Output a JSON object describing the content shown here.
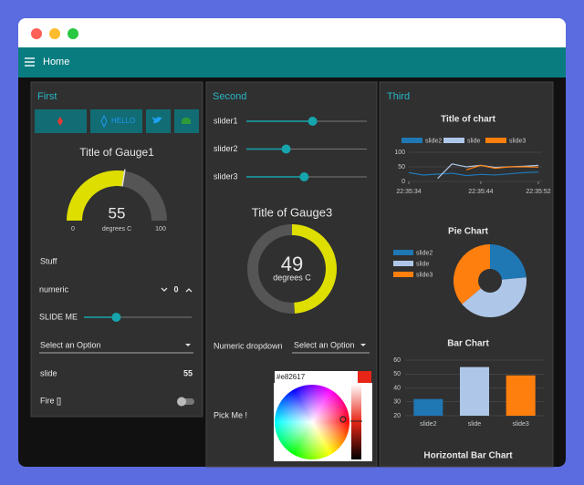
{
  "header": {
    "title": "Home"
  },
  "first": {
    "title": "First",
    "button_label": "HELLO",
    "gauge": {
      "title": "Title of Gauge1",
      "value": 55,
      "units": "degrees C",
      "min": 0,
      "max": 100,
      "color": "#dede00"
    },
    "text": "Stuff",
    "numeric": {
      "label": "numeric",
      "value": 0
    },
    "slider": {
      "label": "SLIDE ME",
      "value": 30,
      "range": [
        0,
        100
      ]
    },
    "dropdown": {
      "placeholder": "Select an Option"
    },
    "slide": {
      "label": "slide",
      "value": 55
    },
    "switch": {
      "label": "Fire []",
      "on": false
    }
  },
  "second": {
    "title": "Second",
    "sliders": [
      {
        "label": "slider1",
        "value": 55
      },
      {
        "label": "slider2",
        "value": 33
      },
      {
        "label": "slider3",
        "value": 48
      }
    ],
    "slider_range": [
      0,
      100
    ],
    "gauge": {
      "title": "Title of Gauge3",
      "value": 49,
      "units": "degrees C",
      "range": [
        0,
        100
      ],
      "color": "#dede00"
    },
    "dropdown": {
      "label": "Numeric dropdown",
      "placeholder": "Select an Option"
    },
    "color_picker": {
      "label": "Pick Me !",
      "value": "#e82617"
    }
  },
  "third": {
    "title": "Third",
    "line_chart": {
      "type": "line",
      "title": "Title of chart",
      "x": [
        "22:35:34",
        "22:35:36",
        "22:35:38",
        "22:35:40",
        "22:35:42",
        "22:35:44",
        "22:35:46",
        "22:35:48",
        "22:35:50",
        "22:35:52"
      ],
      "series": [
        {
          "name": "slide2",
          "color": "#1f77b4",
          "values": [
            30,
            22,
            25,
            28,
            20,
            24,
            22,
            26,
            30,
            32
          ]
        },
        {
          "name": "slide",
          "color": "#aec7e8",
          "values": [
            null,
            null,
            10,
            60,
            50,
            55,
            48,
            50,
            52,
            55
          ]
        },
        {
          "name": "slide3",
          "color": "#ff7f0e",
          "values": [
            null,
            null,
            null,
            null,
            40,
            55,
            45,
            50,
            50,
            49
          ]
        }
      ],
      "ylim": [
        0,
        100
      ],
      "yticks": [
        0,
        50,
        100
      ],
      "xticks": [
        "22:35:34",
        "22:35:44",
        "22:35:52"
      ],
      "grid": true
    },
    "pie_chart": {
      "type": "pie",
      "title": "Pie Chart",
      "categories": [
        "slide2",
        "slide",
        "slide3"
      ],
      "values": [
        32,
        55,
        49
      ],
      "colors": [
        "#1f77b4",
        "#aec7e8",
        "#ff7f0e"
      ]
    },
    "bar_chart": {
      "type": "bar",
      "title": "Bar Chart",
      "categories": [
        "slide2",
        "slide",
        "slide3"
      ],
      "values": [
        32,
        55,
        49
      ],
      "colors": [
        "#1f77b4",
        "#aec7e8",
        "#ff7f0e"
      ],
      "ylim": [
        20,
        60
      ],
      "yticks": [
        20,
        30,
        40,
        50,
        60
      ],
      "grid": true
    },
    "hbar_chart": {
      "title": "Horizontal Bar Chart"
    }
  }
}
